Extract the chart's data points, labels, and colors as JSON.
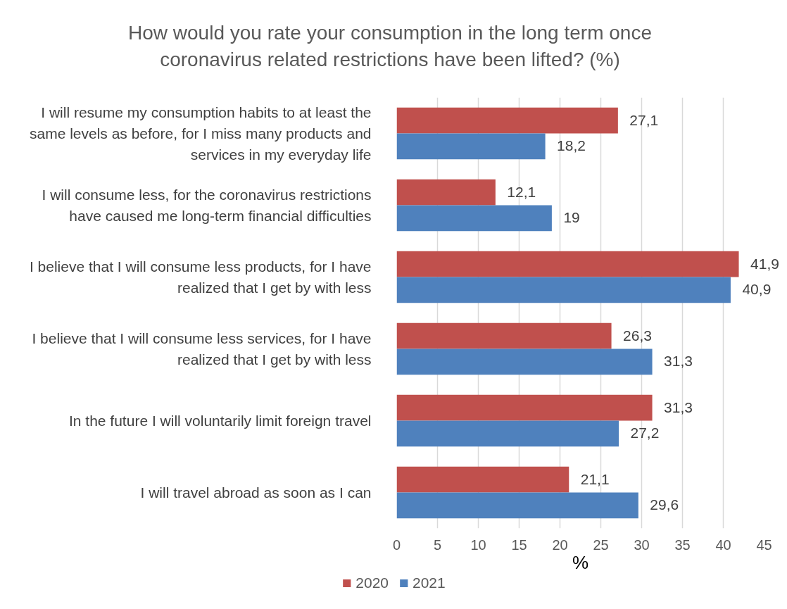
{
  "chart_data": {
    "type": "bar",
    "orientation": "horizontal",
    "title": "How would you rate your consumption in the long term once coronavirus related restrictions have been lifted? (%)",
    "xlabel": "%",
    "categories": [
      "I will resume my consumption habits to at least the same levels as before, for I miss many products and services in my everyday life",
      "I will consume less, for the coronavirus restrictions have caused me long-term financial difficulties",
      "I believe that I will consume less products, for I have realized that I get by with less",
      "I believe that I will consume less services, for I have realized that I get by with less",
      "In the future I will voluntarily limit foreign travel",
      "I will travel abroad as soon as I can"
    ],
    "series": [
      {
        "name": "2020",
        "color": "#c0504d",
        "values": [
          27.1,
          12.1,
          41.9,
          26.3,
          31.3,
          21.1
        ],
        "value_labels": [
          "27,1",
          "12,1",
          "41,9",
          "26,3",
          "31,3",
          "21,1"
        ]
      },
      {
        "name": "2021",
        "color": "#4f81bd",
        "values": [
          18.2,
          19,
          40.9,
          31.3,
          27.2,
          29.6
        ],
        "value_labels": [
          "18,2",
          "19",
          "40,9",
          "31,3",
          "27,2",
          "29,6"
        ]
      }
    ],
    "xlim": [
      0,
      45
    ],
    "xticks": [
      0,
      5,
      10,
      15,
      20,
      25,
      30,
      35,
      40,
      45
    ],
    "grid": "x",
    "legend": "bottom"
  }
}
